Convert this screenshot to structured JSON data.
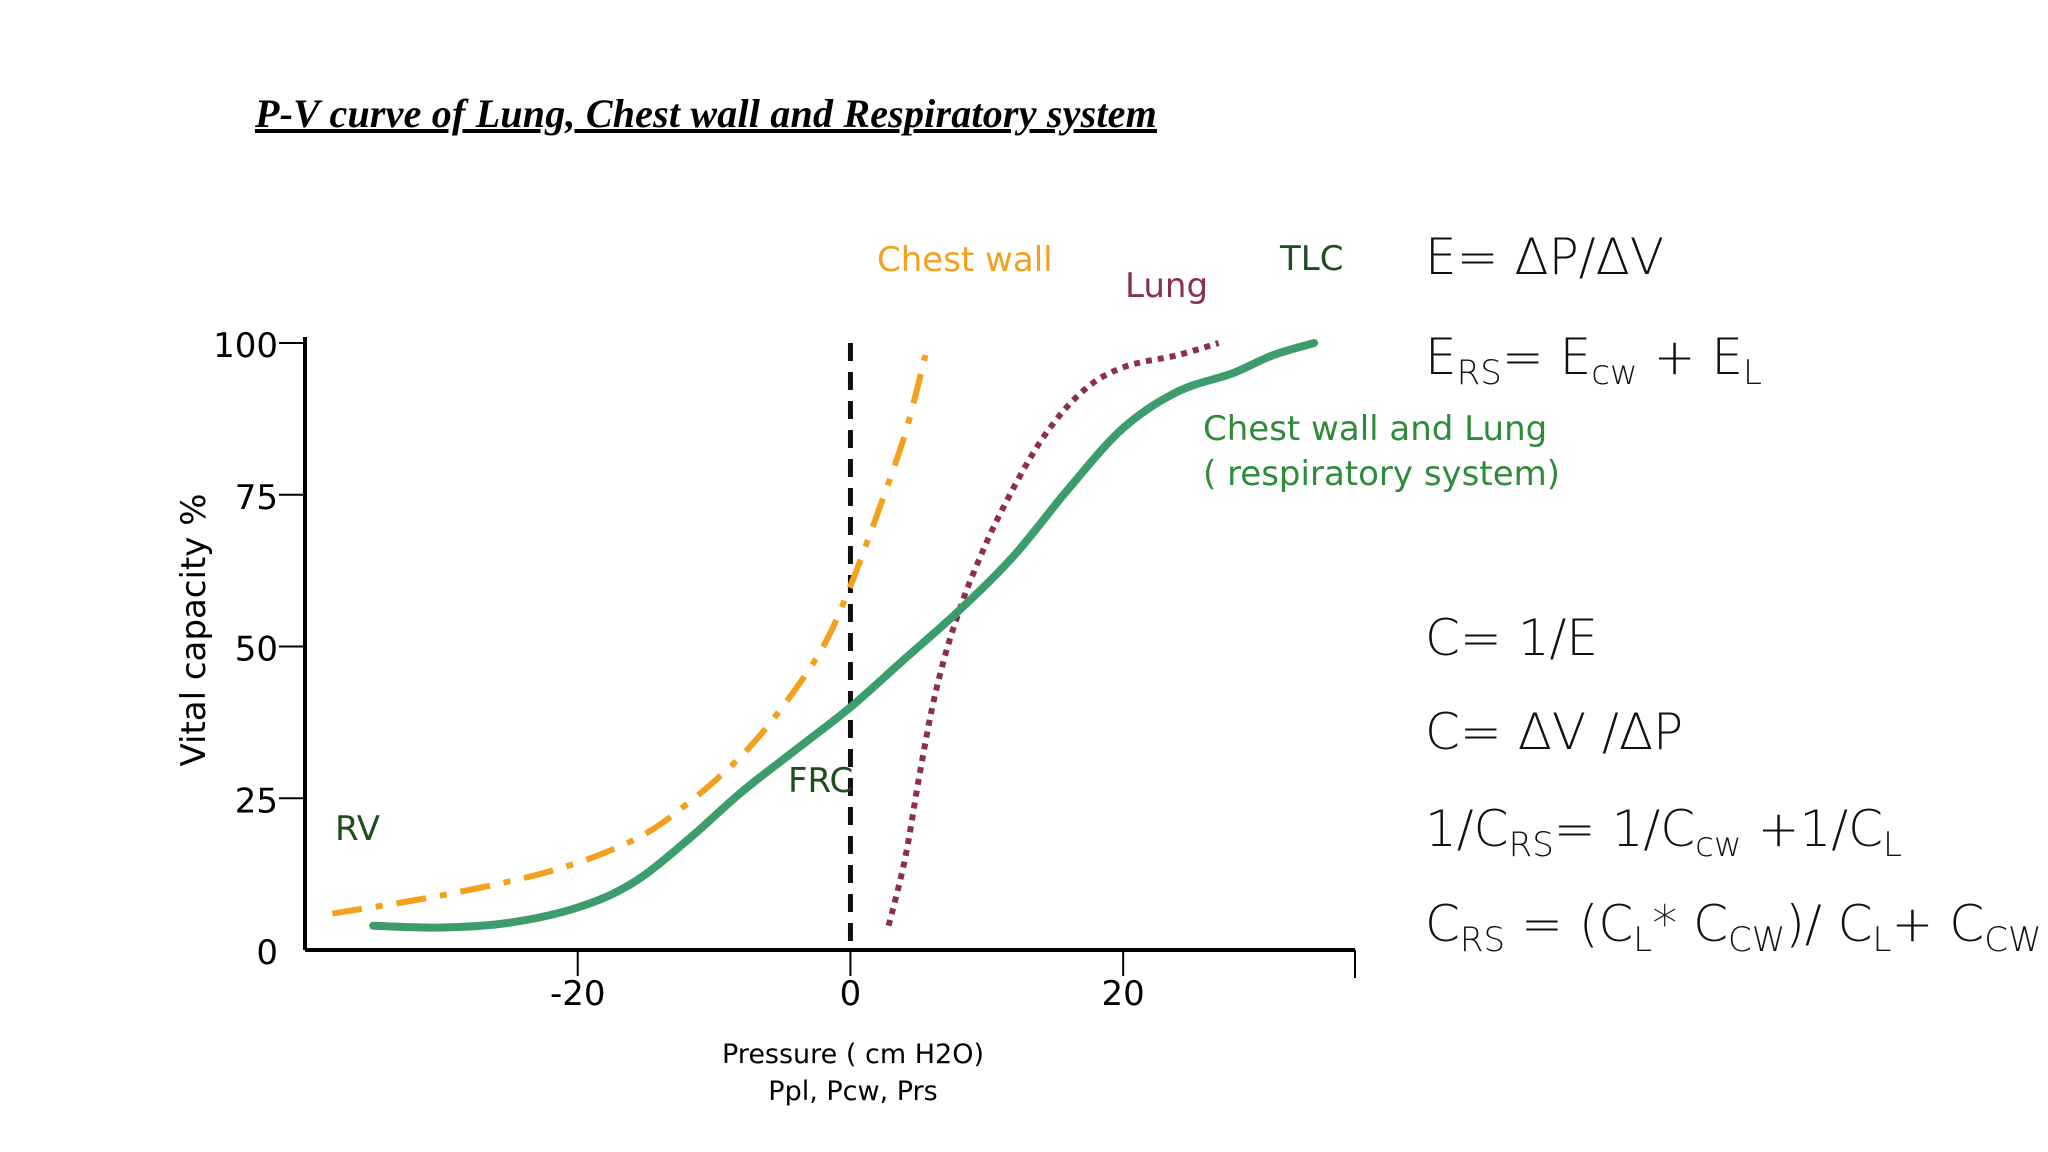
{
  "title": "P-V curve of  Lung, Chest wall and Respiratory system",
  "chart_data": {
    "type": "line",
    "xlabel": "Pressure ( cm H2O)",
    "xlabel2": "Ppl, Pcw, Prs",
    "ylabel": "Vital capacity %",
    "xlim": [
      -40,
      37
    ],
    "ylim": [
      0,
      100
    ],
    "x_ticks": [
      "-20",
      "0",
      "20"
    ],
    "x_tick_values": [
      -20,
      0,
      20
    ],
    "y_ticks": [
      "0",
      "25",
      "50",
      "75",
      "100"
    ],
    "y_tick_values": [
      0,
      25,
      50,
      75,
      100
    ],
    "vertical_reference_line_x": 0,
    "series": [
      {
        "name": "Chest wall",
        "color": "#F4A01C",
        "style": "dashdot",
        "points": [
          [
            -38,
            6
          ],
          [
            -30,
            9
          ],
          [
            -22,
            13
          ],
          [
            -16,
            18
          ],
          [
            -12,
            24
          ],
          [
            -8,
            32
          ],
          [
            -5,
            40
          ],
          [
            -2,
            50
          ],
          [
            0,
            60
          ],
          [
            2,
            72
          ],
          [
            4,
            85
          ],
          [
            5.5,
            98
          ]
        ]
      },
      {
        "name": "Lung",
        "color": "#8B2F52",
        "style": "dotted",
        "points": [
          [
            2.8,
            4
          ],
          [
            4,
            15
          ],
          [
            5,
            28
          ],
          [
            6,
            40
          ],
          [
            7,
            49
          ],
          [
            8,
            56
          ],
          [
            9,
            62
          ],
          [
            11,
            72
          ],
          [
            14,
            84
          ],
          [
            17,
            92
          ],
          [
            20,
            96
          ],
          [
            24,
            98
          ],
          [
            27,
            100
          ]
        ]
      },
      {
        "name": "Chest wall and Lung\n( respiratory system)",
        "color": "#3C9C6B",
        "style": "solid",
        "points": [
          [
            -35,
            4
          ],
          [
            -30,
            3.7
          ],
          [
            -25,
            4.5
          ],
          [
            -20,
            7
          ],
          [
            -16,
            11
          ],
          [
            -12,
            18
          ],
          [
            -8,
            26
          ],
          [
            -4,
            33
          ],
          [
            0,
            40
          ],
          [
            4,
            48
          ],
          [
            8,
            56
          ],
          [
            12,
            65
          ],
          [
            16,
            76
          ],
          [
            20,
            86
          ],
          [
            24,
            92
          ],
          [
            28,
            95
          ],
          [
            31,
            98
          ],
          [
            34,
            100
          ]
        ]
      }
    ],
    "annotations": {
      "chest_wall": "Chest wall",
      "lung": "Lung",
      "tlc": "TLC",
      "respiratory_line1": "Chest wall and Lung",
      "respiratory_line2": "( respiratory system)",
      "rv": "RV",
      "frc": "FRC"
    },
    "annotation_colors": {
      "chest_wall": "#F4A01C",
      "lung": "#8B2F52",
      "dark_green": "#1F4D1F",
      "green": "#2E8B3A"
    }
  },
  "equations": {
    "eq1": {
      "main": "E= ΔP/ΔV"
    },
    "eq2": {
      "p1": "E",
      "s1": "RS",
      "p2": "= E",
      "s2": "cw",
      "p3": " + E",
      "s3": "L"
    },
    "eq3": {
      "main": "C= 1/E"
    },
    "eq4": {
      "main": "C= ΔV /ΔP"
    },
    "eq5": {
      "p1": "1/C",
      "s1": "RS",
      "p2": "= 1/C",
      "s2": "cw",
      "p3": " +1/C",
      "s3": "L"
    },
    "eq6": {
      "p1": "C",
      "s1": "RS",
      "p2": " = (C",
      "s2": "L",
      "p3": "* C",
      "s3": "CW",
      "p4": ")/ C",
      "s4": "L",
      "p5": "+ C",
      "s5": "CW"
    }
  }
}
